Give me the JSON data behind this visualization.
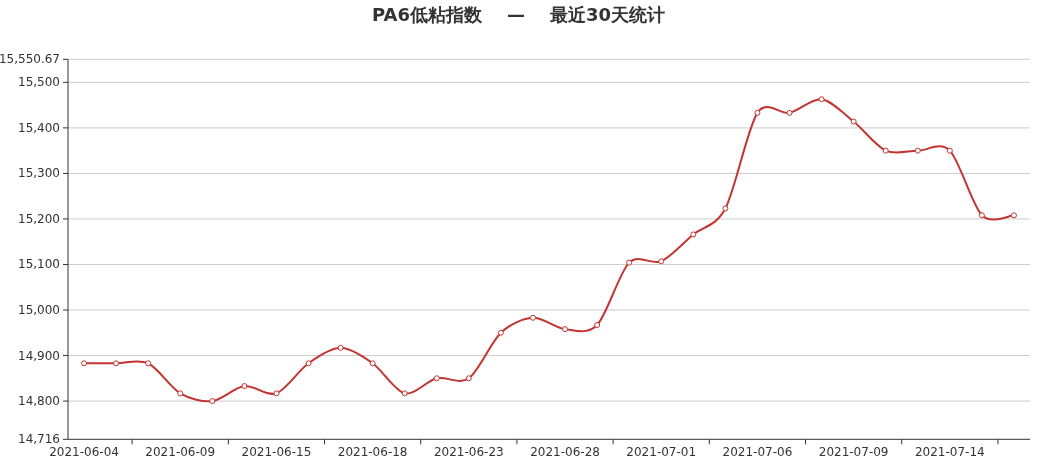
{
  "chart_data": {
    "type": "line",
    "title": "PA6低粘指数    —    最近30天统计",
    "categories": [
      "2021-06-04",
      null,
      null,
      "2021-06-09",
      null,
      null,
      "2021-06-15",
      null,
      null,
      "2021-06-18",
      null,
      null,
      "2021-06-23",
      null,
      null,
      "2021-06-28",
      null,
      null,
      "2021-07-01",
      null,
      null,
      "2021-07-06",
      null,
      null,
      "2021-07-09",
      null,
      null,
      "2021-07-14",
      null,
      null
    ],
    "series": [
      {
        "color": "#c23531",
        "values": [
          14883,
          14883,
          14883,
          14817,
          14800,
          14833,
          14817,
          14883,
          14917,
          14883,
          14817,
          14850,
          14850,
          14950,
          14983,
          14958,
          14967,
          15104,
          15107,
          15166,
          15223,
          15433,
          15433,
          15463,
          15414,
          15350,
          15350,
          15350,
          15208,
          15208
        ]
      }
    ],
    "ylim": [
      14716,
      15550.67
    ],
    "yticks": [
      {
        "value": 14716,
        "label": "14,716"
      },
      {
        "value": 14800,
        "label": "14,800"
      },
      {
        "value": 14900,
        "label": "14,900"
      },
      {
        "value": 15000,
        "label": "15,000"
      },
      {
        "value": 15100,
        "label": "15,100"
      },
      {
        "value": 15200,
        "label": "15,200"
      },
      {
        "value": 15300,
        "label": "15,300"
      },
      {
        "value": 15400,
        "label": "15,400"
      },
      {
        "value": 15500,
        "label": "15,500"
      },
      {
        "value": 15550.67,
        "label": "15,550.67"
      }
    ],
    "grid": "y",
    "marker": "circle",
    "line_style": "solid"
  }
}
